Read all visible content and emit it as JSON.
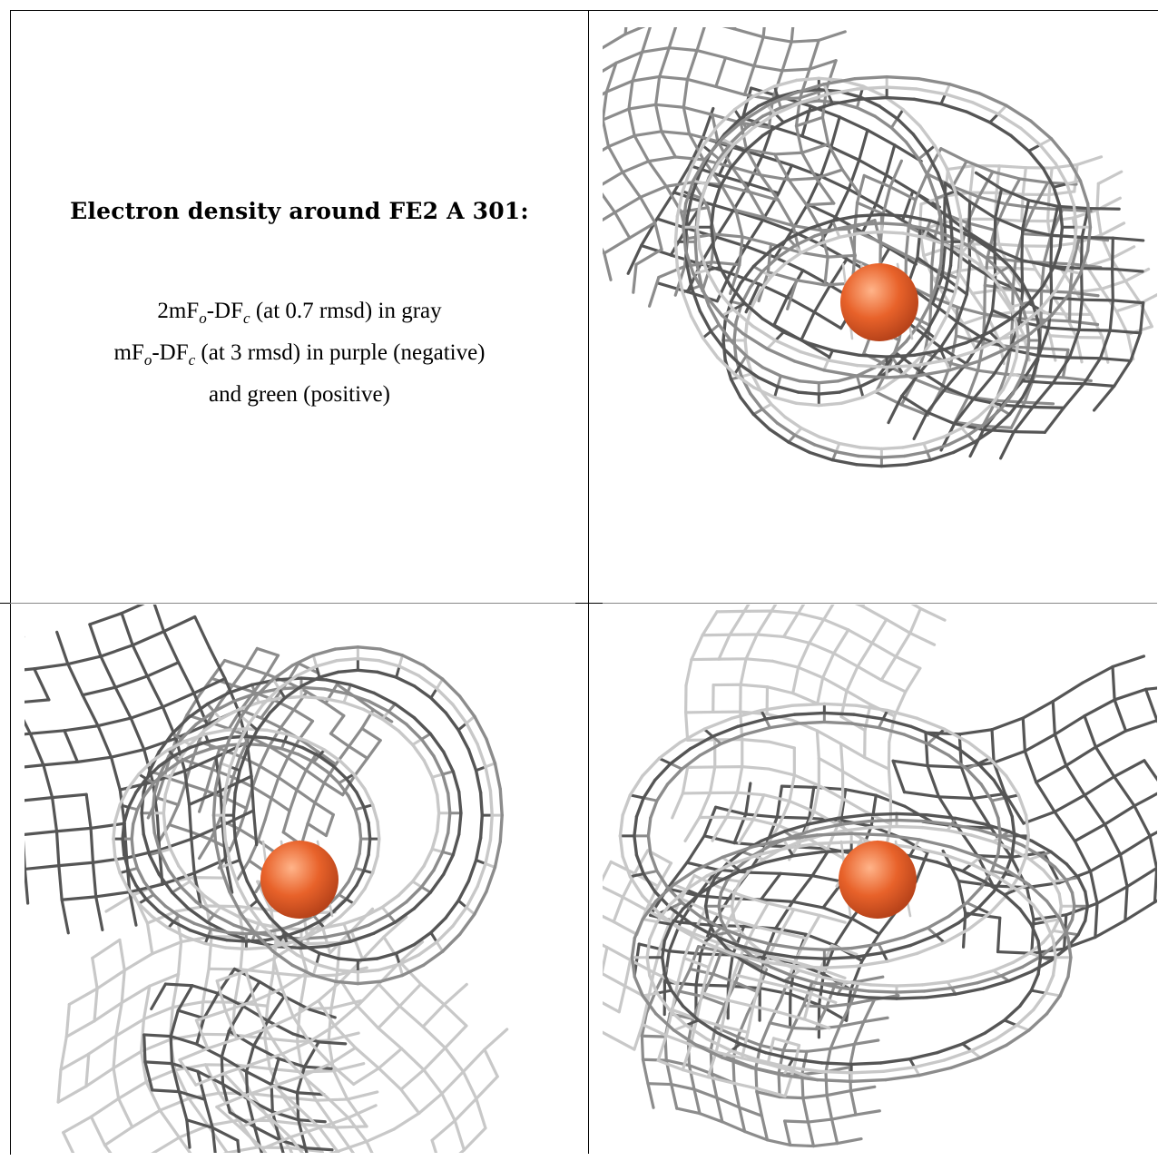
{
  "caption": {
    "title": "Electron density around FE2 A 301:",
    "line1": "2mF",
    "line1_sub1": "o",
    "line1_mid": "-DF",
    "line1_sub2": "c",
    "line1_rest": " (at 0.7 rmsd) in gray",
    "line2": "mF",
    "line2_sub1": "o",
    "line2_mid": "-DF",
    "line2_sub2": "c",
    "line2_rest": " (at 3 rmsd) in purple (negative)",
    "line3": "and green (positive)"
  },
  "colors": {
    "atom": "#e8622a",
    "atom_highlight": "#ffb48a",
    "mesh_dark": "#555555",
    "mesh_mid": "#8c8c8c",
    "mesh_light": "#c8c8c8"
  },
  "panels": [
    {
      "name": "view-1",
      "seed": 11
    },
    {
      "name": "view-2",
      "seed": 29
    },
    {
      "name": "view-3",
      "seed": 47
    }
  ]
}
